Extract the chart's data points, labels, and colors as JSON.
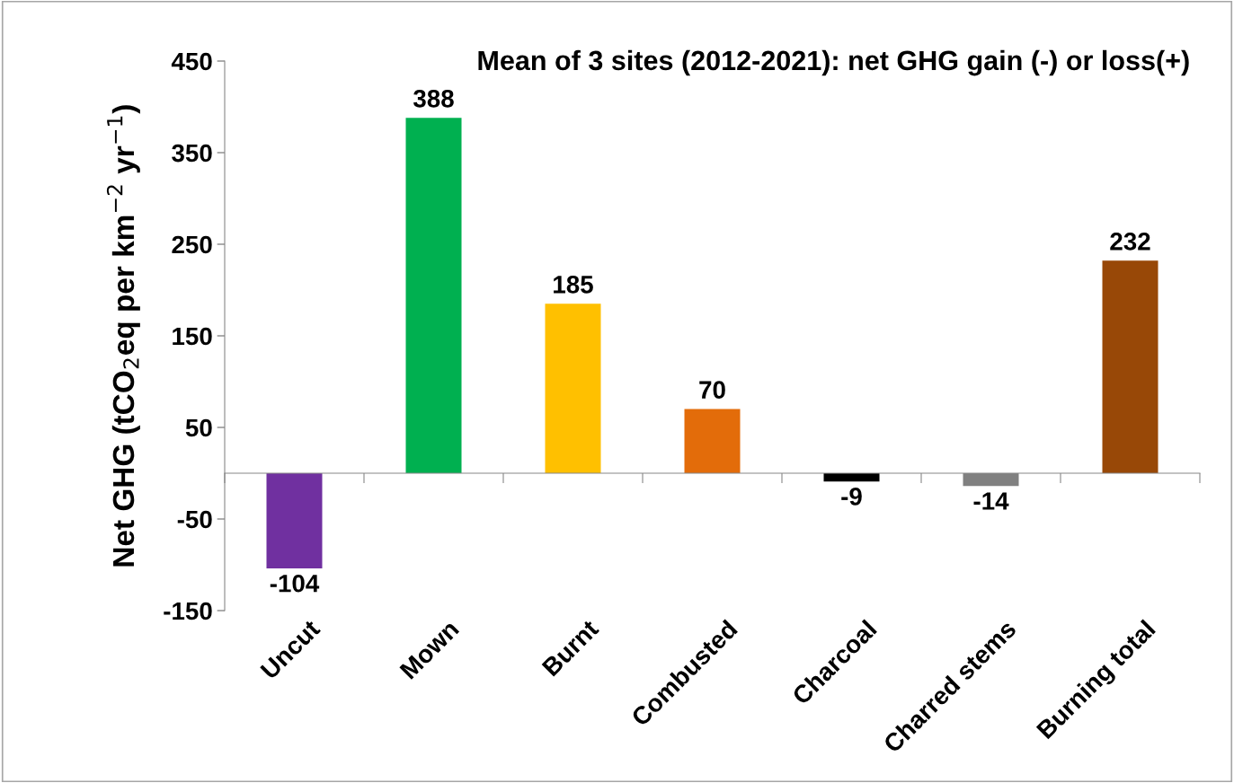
{
  "chart_data": {
    "type": "bar",
    "title": "Mean of 3 sites (2012-2021): net GHG gain (-) or loss(+)",
    "ylabel": "Net GHG (tCO$_{2}$eq per km$^{−2}$ yr$^{−1}$)",
    "categories": [
      "Uncut",
      "Mown",
      "Burnt",
      "Combusted",
      "Charcoal",
      "Charred stems",
      "Burning total"
    ],
    "values": [
      -104,
      388,
      185,
      70,
      -9,
      -14,
      232
    ],
    "colors": [
      "#7030a0",
      "#00b050",
      "#ffc000",
      "#e36c0a",
      "#000000",
      "#808080",
      "#984807"
    ],
    "ylim": [
      -150,
      450
    ],
    "yticks": [
      -150,
      -50,
      50,
      150,
      250,
      350,
      450
    ],
    "data_labels": true,
    "grid": false,
    "legend": false
  }
}
